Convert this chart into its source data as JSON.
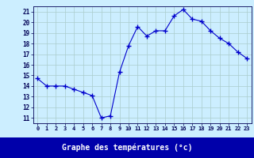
{
  "x": [
    0,
    1,
    2,
    3,
    4,
    5,
    6,
    7,
    8,
    9,
    10,
    11,
    12,
    13,
    14,
    15,
    16,
    17,
    18,
    19,
    20,
    21,
    22,
    23
  ],
  "y": [
    14.7,
    14.0,
    14.0,
    14.0,
    13.7,
    13.4,
    13.1,
    11.0,
    11.2,
    15.3,
    17.8,
    19.6,
    18.7,
    19.2,
    19.2,
    20.6,
    21.2,
    20.3,
    20.1,
    19.2,
    18.5,
    18.0,
    17.2,
    16.6
  ],
  "line_color": "#0000cc",
  "marker": "+",
  "bg_color": "#cceeff",
  "grid_color": "#aacccc",
  "xlabel": "Graphe des températures (°c)",
  "xlabel_bg": "#0000aa",
  "xlabel_fg": "#ffffff",
  "ylabel_ticks": [
    11,
    12,
    13,
    14,
    15,
    16,
    17,
    18,
    19,
    20,
    21
  ],
  "ylim": [
    10.5,
    21.5
  ],
  "xlim": [
    -0.5,
    23.5
  ],
  "tick_color": "#000055",
  "xtick_labels": [
    "0",
    "1",
    "2",
    "3",
    "4",
    "5",
    "6",
    "7",
    "8",
    "9",
    "10",
    "11",
    "12",
    "13",
    "14",
    "15",
    "16",
    "17",
    "18",
    "19",
    "20",
    "21",
    "22",
    "23"
  ]
}
